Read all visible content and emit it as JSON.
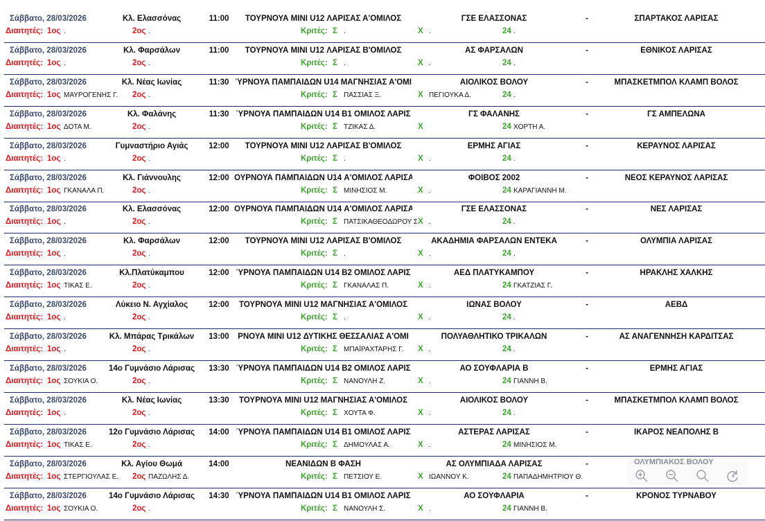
{
  "labels": {
    "referees": "Διαιτητές:",
    "ref1": "1ος",
    "ref2": "2ος",
    "judges": "Κριτές:",
    "sigma": "Σ",
    "x": "Χ",
    "n24": "24",
    "dash": "-"
  },
  "matches": [
    {
      "date": "Σάββατο, 28/03/2026",
      "venue": "Κλ. Ελασσόνας",
      "time": "11:00",
      "competition": "ΤΟΥΡΝΟΥΑ ΜΙΝΙ U12 ΛΑΡΙΣΑΣ Α'ΟΜΙΛΟΣ",
      "home": "ΓΣΕ ΕΛΑΣΣΟΝΑΣ",
      "away": "ΣΠΑΡΤΑΚΟΣ ΛΑΡΙΣΑΣ",
      "ref1": ".",
      "ref2": ".",
      "j1": ".",
      "j2": ".",
      "j3": "."
    },
    {
      "date": "Σάββατο, 28/03/2026",
      "venue": "Κλ. Φαρσάλων",
      "time": "11:00",
      "competition": "ΤΟΥΡΝΟΥΑ ΜΙΝΙ U12 ΛΑΡΙΣΑΣ Β'ΟΜΙΛΟΣ",
      "home": "ΑΣ ΦΑΡΣΑΛΩΝ",
      "away": "ΕΘΝΙΚΟΣ ΛΑΡΙΣΑΣ",
      "ref1": ".",
      "ref2": ".",
      "j1": ".",
      "j2": ".",
      "j3": "."
    },
    {
      "date": "Σάββατο, 28/03/2026",
      "venue": "Κλ. Νέας Ιωνίας",
      "time": "11:30",
      "competition": "ΎΡΝΟΥΑ ΠΑΜΠΑΙΔΩΝ U14 ΜΑΓΝΗΣΙΑΣ Α'ΟΜΙ",
      "home": "ΑΙΟΛΙΚΟΣ ΒΟΛΟΥ",
      "away": "ΜΠΑΣΚΕΤΜΠΟΛ ΚΛΑΜΠ ΒΟΛΟΣ",
      "ref1": "ΜΑΥΡΟΓΕΝΗΣ Γ.",
      "ref2": ".",
      "j1": "ΠΑΣΣΙΑΣ Ξ.",
      "j2": "ΠΕΓΙΟΥΚΑ Δ.",
      "j3": "."
    },
    {
      "date": "Σάββατο, 28/03/2026",
      "venue": "Κλ. Φαλάνης",
      "time": "11:30",
      "competition": "ΎΡΝΟΥΑ ΠΑΜΠΑΙΔΩΝ U14 Β1 ΟΜΙΛΟΣ ΛΑΡΙΣ",
      "home": "ΓΣ ΦΑΛΑΝΗΣ",
      "away": "ΓΣ ΑΜΠΕΛΩΝΑ",
      "ref1": "ΔΟΤΑ Μ.",
      "ref2": ".",
      "j1": "ΤΖΙΚΑΣ Δ.",
      "j2": "",
      "j3": "ΧΟΡΤΗ Α."
    },
    {
      "date": "Σάββατο, 28/03/2026",
      "venue": "Γυμναστήριο Αγιάς",
      "time": "12:00",
      "competition": "ΤΟΥΡΝΟΥΑ ΜΙΝΙ U12 ΛΑΡΙΣΑΣ Β'ΟΜΙΛΟΣ",
      "home": "ΕΡΜΗΣ ΑΓΙΑΣ",
      "away": "ΚΕΡΑΥΝΟΣ ΛΑΡΙΣΑΣ",
      "ref1": ".",
      "ref2": ".",
      "j1": ".",
      "j2": ".",
      "j3": "."
    },
    {
      "date": "Σάββατο, 28/03/2026",
      "venue": "Κλ. Γιάννουλης",
      "time": "12:00",
      "competition": "ΟΥΡΝΟΥΑ ΠΑΜΠΑΙΔΩΝ U14 Α'ΟΜΙΛΟΣ ΛΑΡΙΣΑ",
      "home": "ΦΟΙΒΟΣ 2002",
      "away": "ΝΕΟΣ ΚΕΡΑΥΝΟΣ ΛΑΡΙΣΑΣ",
      "ref1": "ΓΚΑΝΑΛΑ Π.",
      "ref2": ".",
      "j1": "ΜΙΝΗΣΙΟΣ Μ.",
      "j2": ".",
      "j3": "ΚΑΡΑΓΙΑΝΝΗ Μ."
    },
    {
      "date": "Σάββατο, 28/03/2026",
      "venue": "Κλ. Ελασσόνας",
      "time": "12:00",
      "competition": "ΟΥΡΝΟΥΑ ΠΑΜΠΑΙΔΩΝ U14 Α'ΟΜΙΛΟΣ ΛΑΡΙΣΑ",
      "home": "ΓΣΕ ΕΛΑΣΣΟΝΑΣ",
      "away": "ΝΕΣ ΛΑΡΙΣΑΣ",
      "ref1": ".",
      "ref2": ".",
      "j1": "ΠΑΤΣΙΚΑΘΕΟΔΩΡΟΥ Σ",
      "j2": ".",
      "j3": "."
    },
    {
      "date": "Σάββατο, 28/03/2026",
      "venue": "Κλ. Φαρσάλων",
      "time": "12:00",
      "competition": "ΤΟΥΡΝΟΥΑ ΜΙΝΙ U12 ΛΑΡΙΣΑΣ Β'ΟΜΙΛΟΣ",
      "home": "ΑΚΑΔΗΜΙΑ ΦΑΡΣΑΛΩΝ ΕΝΤΕΚΑ",
      "away": "ΟΛΥΜΠΙΑ ΛΑΡΙΣΑΣ",
      "ref1": ".",
      "ref2": ".",
      "j1": ".",
      "j2": ".",
      "j3": "."
    },
    {
      "date": "Σάββατο, 28/03/2026",
      "venue": "Κλ.Πλατύκαμπου",
      "time": "12:00",
      "competition": "ΎΡΝΟΥΑ ΠΑΜΠΑΙΔΩΝ U14 Β2 ΟΜΙΛΟΣ ΛΑΡΙΣ",
      "home": "ΑΕΔ ΠΛΑΤΥΚΑΜΠΟΥ",
      "away": "ΗΡΑΚΛΗΣ ΧΑΛΚΗΣ",
      "ref1": "ΤΙΚΑΣ Ε.",
      "ref2": ".",
      "j1": "ΓΚΑΝΑΛΑΣ Π.",
      "j2": ".",
      "j3": "ΓΚΑΤΖΙΑΣ Γ."
    },
    {
      "date": "Σάββατο, 28/03/2026",
      "venue": "Λύκειο Ν. Αγχίαλος",
      "time": "12:00",
      "competition": "ΤΟΥΡΝΟΥΑ ΜΙΝΙ U12 ΜΑΓΝΗΣΙΑΣ Α'ΟΜΙΛΟΣ",
      "home": "ΙΩΝΑΣ ΒΟΛΟΥ",
      "away": "ΑΕΒΔ",
      "ref1": ".",
      "ref2": ".",
      "j1": ".",
      "j2": ".",
      "j3": "."
    },
    {
      "date": "Σάββατο, 28/03/2026",
      "venue": "Κλ. Μπάρας Τρικάλων",
      "time": "13:00",
      "competition": "ΡΝΟΥΑ ΜΙΝΙ U12 ΔΥΤΙΚΗΣ ΘΕΣΣΑΛΙΑΣ Α'ΟΜΙ",
      "home": "ΠΟΛΥΑΘΛΗΤΙΚΟ ΤΡΙΚΑΛΩΝ",
      "away": "ΑΣ ΑΝΑΓΕΝΝΗΣΗ ΚΑΡΔΙΤΣΑΣ",
      "ref1": ".",
      "ref2": ".",
      "j1": "ΜΠΑΪΡΑΧΤΑΡΗΣ Γ.",
      "j2": ".",
      "j3": "."
    },
    {
      "date": "Σάββατο, 28/03/2026",
      "venue": "14ο Γυμνάσιο Λάρισας",
      "time": "13:30",
      "competition": "ΎΡΝΟΥΑ ΠΑΜΠΑΙΔΩΝ U14 Β2 ΟΜΙΛΟΣ ΛΑΡΙΣ",
      "home": "ΑΟ ΣΟΥΦΛΑΡΙΑ Β",
      "away": "ΕΡΜΗΣ ΑΓΙΑΣ",
      "ref1": "ΣΟΥΚΙΑ Ο.",
      "ref2": ".",
      "j1": "ΝΑΝΟΥΛΗ Ζ.",
      "j2": ".",
      "j3": "ΓΙΑΝΝΗ Β."
    },
    {
      "date": "Σάββατο, 28/03/2026",
      "venue": "Κλ. Νέας Ιωνίας",
      "time": "13:30",
      "competition": "ΤΟΥΡΝΟΥΑ ΜΙΝΙ U12 ΜΑΓΝΗΣΙΑΣ Α'ΟΜΙΛΟΣ",
      "home": "ΑΙΟΛΙΚΟΣ ΒΟΛΟΥ",
      "away": "ΜΠΑΣΚΕΤΜΠΟΛ ΚΛΑΜΠ ΒΟΛΟΣ",
      "ref1": ".",
      "ref2": ".",
      "j1": "ΧΟΥΤΑ Φ.",
      "j2": ".",
      "j3": "."
    },
    {
      "date": "Σάββατο, 28/03/2026",
      "venue": "12ο Γυμνάσιο Λάρισας",
      "time": "14:00",
      "competition": "ΎΡΝΟΥΑ ΠΑΜΠΑΙΔΩΝ U14 Β1 ΟΜΙΛΟΣ ΛΑΡΙΣ",
      "home": "ΑΣΤΕΡΑΣ ΛΑΡΙΣΑΣ",
      "away": "ΙΚΑΡΟΣ ΝΕΑΠΟΛΗΣ Β",
      "ref1": "ΤΙΚΑΣ Ε.",
      "ref2": ".",
      "j1": "ΔΗΜΟΥΛΑΣ Α.",
      "j2": ".",
      "j3": "ΜΙΝΗΣΙΟΣ Μ."
    },
    {
      "date": "Σάββατο, 28/03/2026",
      "venue": "Κλ. Αγίου Θωμά",
      "time": "14:00",
      "competition": "ΝΕΑΝΙΔΩΝ Β ΦΑΣΗ",
      "home": "ΑΣ ΟΛΥΜΠΙΑΔΑ ΛΑΡΙΣΑΣ",
      "away": "",
      "ref1": "ΣΤΕΡΓΙΟΥΛΑΣ Ε.",
      "ref2": "ΠΑΖΩΛΗΣ Δ.",
      "j1": "ΠΕΤΣΙΟΥ Ε.",
      "j2": "ΙΩΑΝΝΟΥ Κ.",
      "j3": "ΠΑΠΑΔΗΜΗΤΡΙΟΥ Θ."
    },
    {
      "date": "Σάββατο, 28/03/2026",
      "venue": "14ο Γυμνάσιο Λάρισας",
      "time": "14:30",
      "competition": "ΎΡΝΟΥΑ ΠΑΜΠΑΙΔΩΝ U14 Β1 ΟΜΙΛΟΣ ΛΑΡΙΣ",
      "home": "ΑΟ ΣΟΥΦΛΑΡΙΑ",
      "away": "ΚΡΟΝΟΣ ΤΥΡΝΑΒΟΥ",
      "ref1": "ΣΟΥΚΙΑ Ο.",
      "ref2": ".",
      "j1": "ΝΑΝΟΥΛΗ Σ.",
      "j2": ".",
      "j3": "ΓΙΑΝΝΗ Β."
    }
  ],
  "zoom_toolbar": {
    "team_name": "ΟΛΥΜΠΙΑΚΟΣ ΒΟΛΟΥ",
    "buttons": [
      "zoom-in-icon",
      "zoom-out-icon",
      "search-icon",
      "rotate-icon"
    ],
    "icon_color": "#9a9da6"
  },
  "colors": {
    "date": "#3c4a6e",
    "referees": "#e0161b",
    "judges": "#3aa52a",
    "rule": "#1e2a66"
  }
}
